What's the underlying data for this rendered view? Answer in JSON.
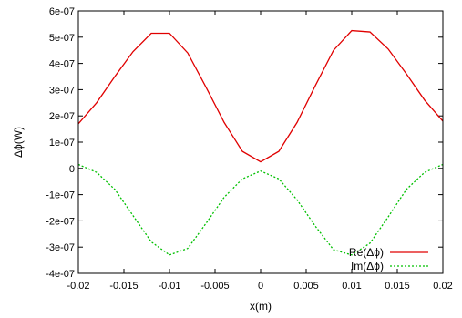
{
  "chart_data": {
    "type": "line",
    "xlabel": "x(m)",
    "ylabel": "Δϕ(W)",
    "xlim": [
      -0.02,
      0.02
    ],
    "ylim": [
      -4e-07,
      6e-07
    ],
    "xticks": [
      -0.02,
      -0.015,
      -0.01,
      -0.005,
      0,
      0.005,
      0.01,
      0.015,
      0.02
    ],
    "xtick_labels": [
      "-0.02",
      "-0.015",
      "-0.01",
      "-0.005",
      "0",
      "0.005",
      "0.01",
      "0.015",
      "0.02"
    ],
    "yticks": [
      -4e-07,
      -3e-07,
      -2e-07,
      -1e-07,
      0,
      1e-07,
      2e-07,
      3e-07,
      4e-07,
      5e-07,
      6e-07
    ],
    "ytick_labels": [
      "-4e-07",
      "-3e-07",
      "-2e-07",
      "-1e-07",
      "0",
      "1e-07",
      "2e-07",
      "3e-07",
      "4e-07",
      "5e-07",
      "6e-07"
    ],
    "grid": false,
    "legend_position": "bottom-right",
    "series": [
      {
        "name": "Re(Δϕ)",
        "color": "#e00000",
        "dash": "solid",
        "x": [
          -0.02,
          -0.018,
          -0.016,
          -0.014,
          -0.012,
          -0.01,
          -0.008,
          -0.006,
          -0.004,
          -0.002,
          0,
          0.002,
          0.004,
          0.006,
          0.008,
          0.01,
          0.012,
          0.014,
          0.016,
          0.018,
          0.02
        ],
        "y": [
          1.7e-07,
          2.5e-07,
          3.5e-07,
          4.45e-07,
          5.15e-07,
          5.15e-07,
          4.4e-07,
          3.1e-07,
          1.75e-07,
          6.5e-08,
          2.5e-08,
          6.5e-08,
          1.75e-07,
          3.15e-07,
          4.5e-07,
          5.25e-07,
          5.2e-07,
          4.55e-07,
          3.6e-07,
          2.6e-07,
          1.8e-07
        ]
      },
      {
        "name": "Im(Δϕ)",
        "color": "#00c000",
        "dash": "dotted",
        "x": [
          -0.02,
          -0.018,
          -0.016,
          -0.014,
          -0.012,
          -0.01,
          -0.008,
          -0.006,
          -0.004,
          -0.002,
          0,
          0.002,
          0.004,
          0.006,
          0.008,
          0.01,
          0.012,
          0.014,
          0.016,
          0.018,
          0.02
        ],
        "y": [
          1.5e-08,
          -1.5e-08,
          -8e-08,
          -1.8e-07,
          -2.8e-07,
          -3.3e-07,
          -3.05e-07,
          -2.1e-07,
          -1.1e-07,
          -4e-08,
          -1e-08,
          -4e-08,
          -1.2e-07,
          -2.2e-07,
          -3.1e-07,
          -3.3e-07,
          -2.85e-07,
          -1.85e-07,
          -8e-08,
          -1.5e-08,
          1.5e-08
        ]
      }
    ]
  }
}
